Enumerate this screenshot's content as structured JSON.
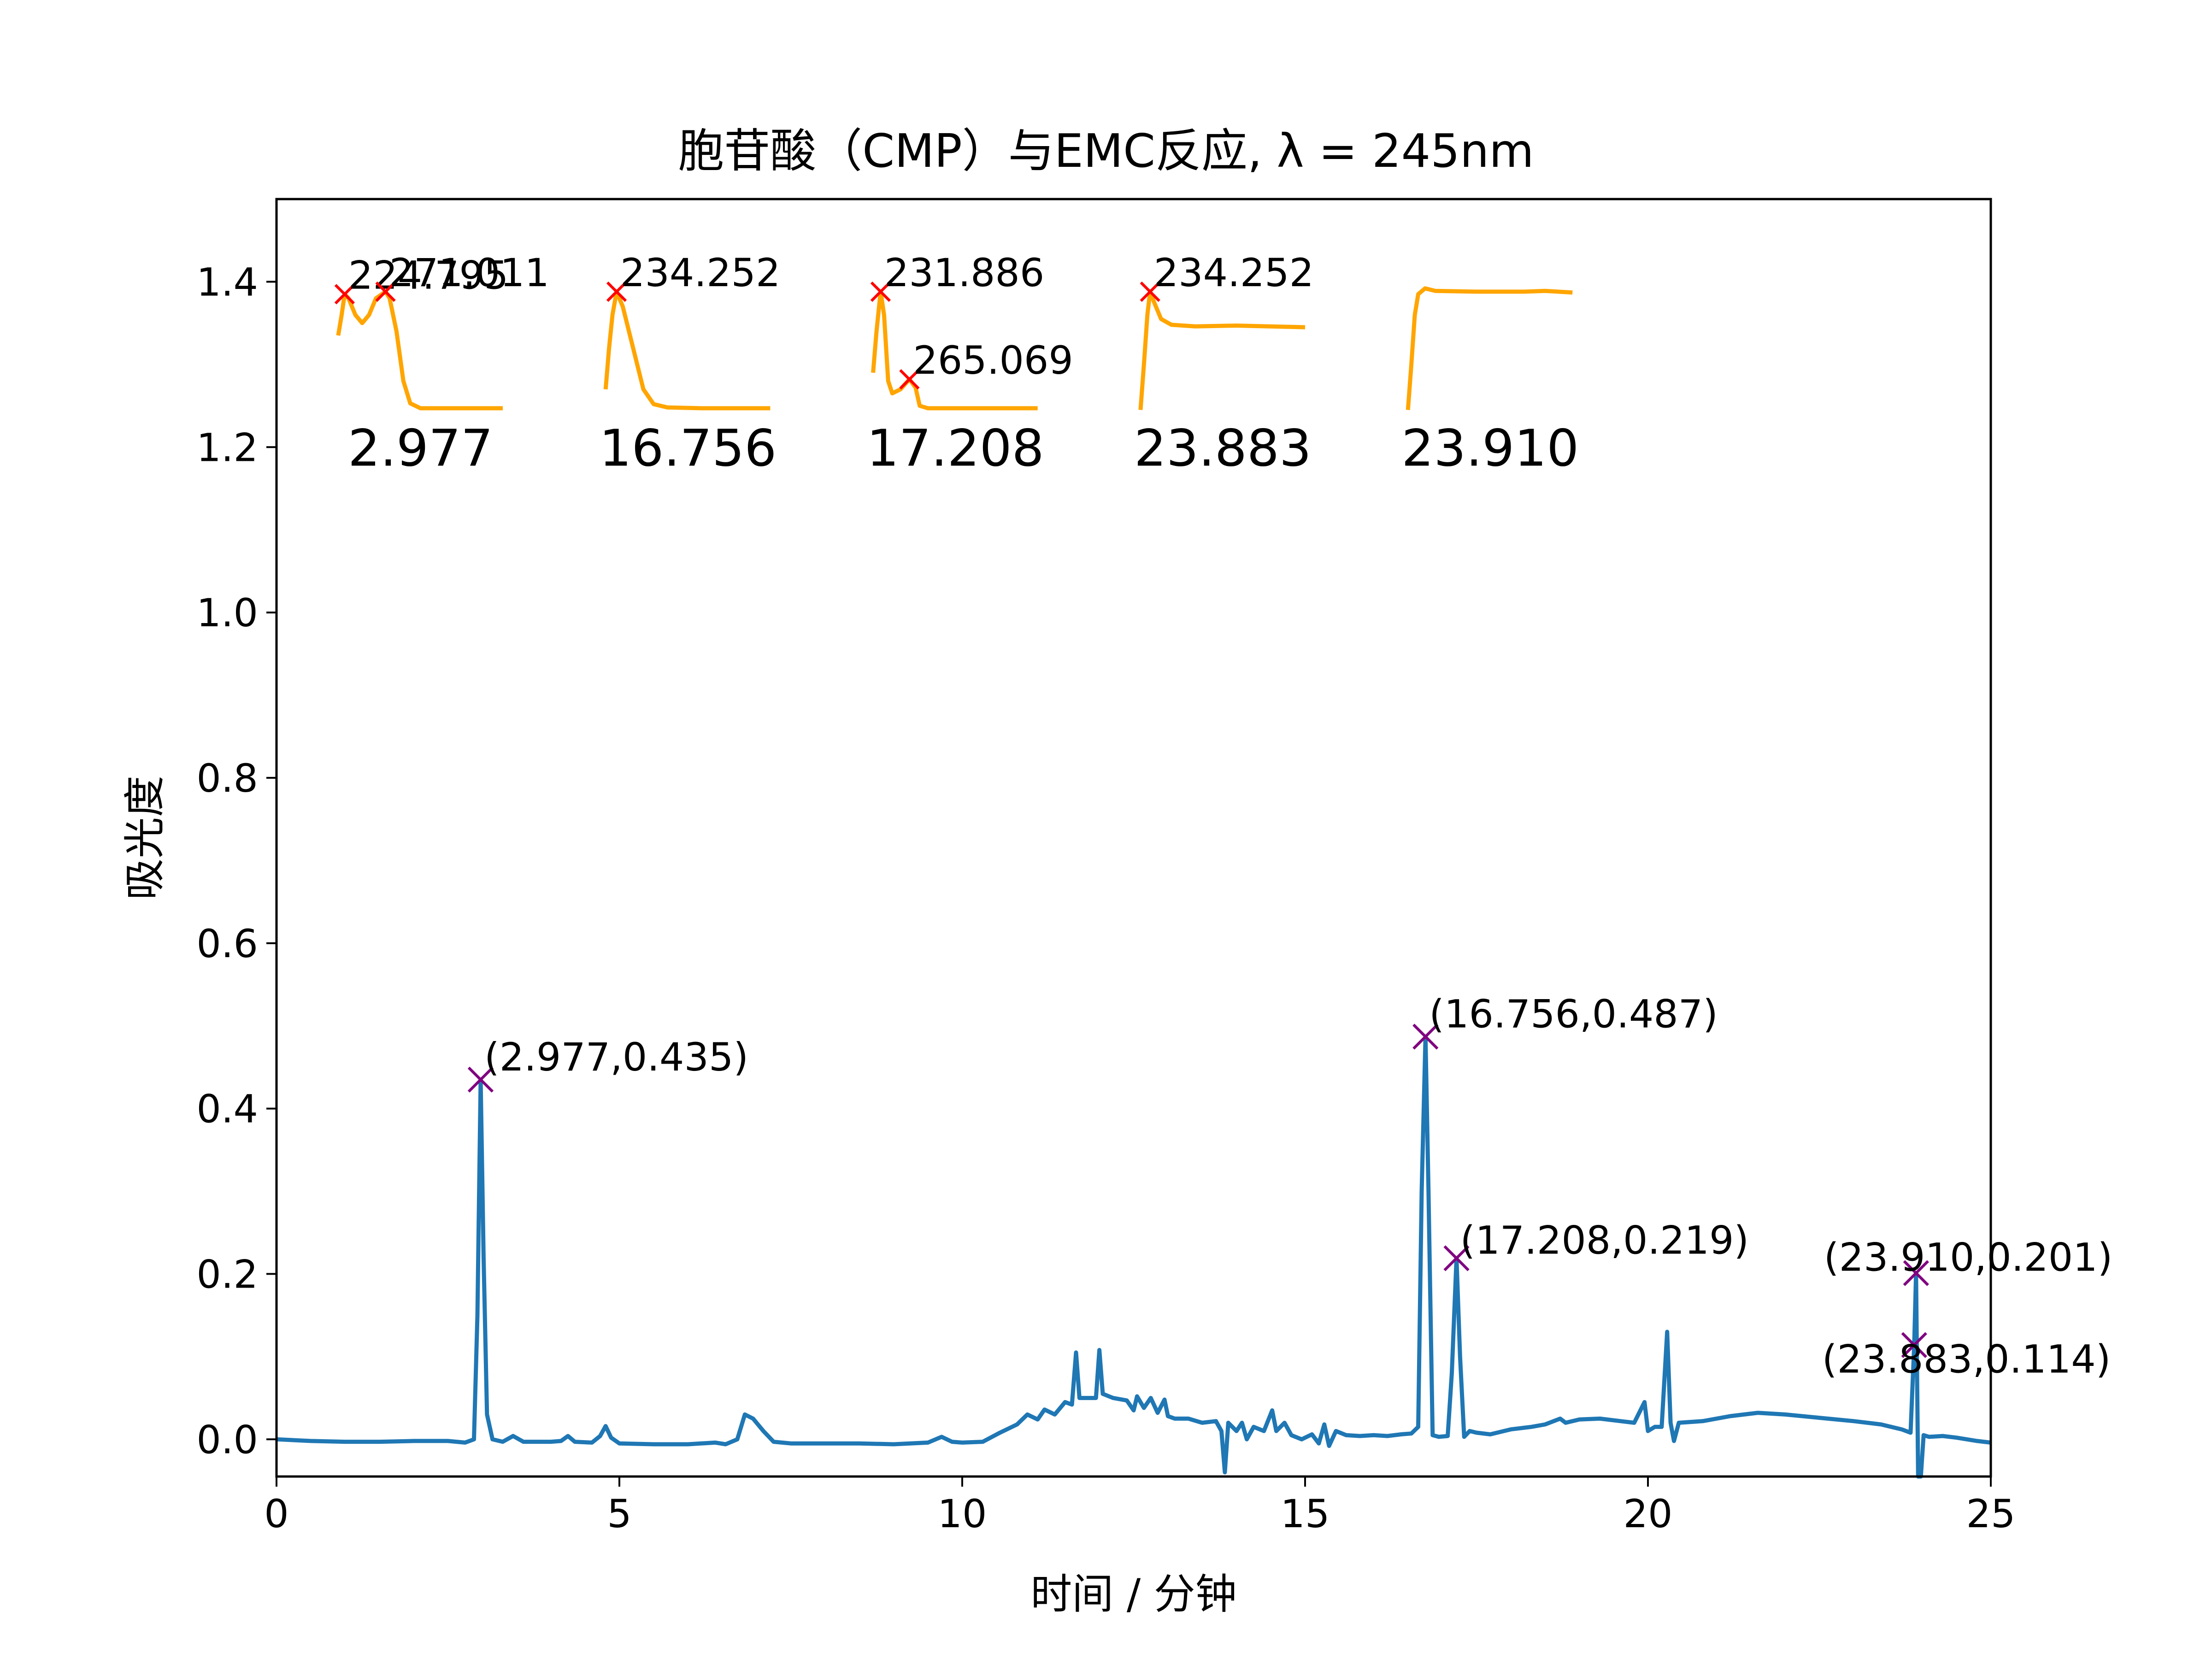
{
  "chart_data": {
    "type": "line",
    "title": "胞苷酸（CMP）与EMC反应, λ = 245nm",
    "xlabel": "时间 / 分钟",
    "ylabel": "吸光度",
    "xlim": [
      0,
      25
    ],
    "ylim": [
      -0.045,
      1.5
    ],
    "xticks": [
      0,
      5,
      10,
      15,
      20,
      25
    ],
    "xtick_labels": [
      "0",
      "5",
      "10",
      "15",
      "20",
      "25"
    ],
    "yticks": [
      0.0,
      0.2,
      0.4,
      0.6,
      0.8,
      1.0,
      1.2,
      1.4
    ],
    "ytick_labels": [
      "0.0",
      "0.2",
      "0.4",
      "0.6",
      "0.8",
      "1.0",
      "1.2",
      "1.4"
    ],
    "grid": false,
    "colors": {
      "trace": "#1f77b4",
      "peak_marker": "#800080",
      "spectrum": "#ffa500",
      "spectrum_marker": "#ff0000"
    },
    "series": [
      {
        "points": [
          [
            0,
            0.0
          ],
          [
            0.5,
            -0.002
          ],
          [
            1,
            -0.003
          ],
          [
            1.5,
            -0.003
          ],
          [
            2,
            -0.002
          ],
          [
            2.5,
            -0.002
          ],
          [
            2.75,
            -0.004
          ],
          [
            2.88,
            0.0
          ],
          [
            2.93,
            0.15
          ],
          [
            2.977,
            0.435
          ],
          [
            3.02,
            0.22
          ],
          [
            3.07,
            0.03
          ],
          [
            3.15,
            0.0
          ],
          [
            3.3,
            -0.003
          ],
          [
            3.45,
            0.004
          ],
          [
            3.6,
            -0.003
          ],
          [
            4.0,
            -0.003
          ],
          [
            4.15,
            -0.002
          ],
          [
            4.25,
            0.004
          ],
          [
            4.35,
            -0.003
          ],
          [
            4.6,
            -0.004
          ],
          [
            4.72,
            0.004
          ],
          [
            4.8,
            0.016
          ],
          [
            4.88,
            0.002
          ],
          [
            5.0,
            -0.005
          ],
          [
            5.5,
            -0.006
          ],
          [
            6.0,
            -0.006
          ],
          [
            6.4,
            -0.004
          ],
          [
            6.55,
            -0.006
          ],
          [
            6.72,
            0.0
          ],
          [
            6.83,
            0.03
          ],
          [
            6.95,
            0.025
          ],
          [
            7.1,
            0.01
          ],
          [
            7.25,
            -0.003
          ],
          [
            7.5,
            -0.005
          ],
          [
            8.0,
            -0.005
          ],
          [
            8.5,
            -0.005
          ],
          [
            9.0,
            -0.006
          ],
          [
            9.5,
            -0.004
          ],
          [
            9.7,
            0.003
          ],
          [
            9.85,
            -0.003
          ],
          [
            10.0,
            -0.004
          ],
          [
            10.3,
            -0.003
          ],
          [
            10.55,
            0.008
          ],
          [
            10.8,
            0.018
          ],
          [
            10.95,
            0.03
          ],
          [
            11.1,
            0.024
          ],
          [
            11.2,
            0.036
          ],
          [
            11.35,
            0.03
          ],
          [
            11.5,
            0.045
          ],
          [
            11.6,
            0.042
          ],
          [
            11.66,
            0.105
          ],
          [
            11.71,
            0.05
          ],
          [
            11.85,
            0.05
          ],
          [
            11.95,
            0.05
          ],
          [
            12.0,
            0.108
          ],
          [
            12.05,
            0.055
          ],
          [
            12.2,
            0.05
          ],
          [
            12.4,
            0.047
          ],
          [
            12.5,
            0.035
          ],
          [
            12.55,
            0.052
          ],
          [
            12.65,
            0.038
          ],
          [
            12.75,
            0.05
          ],
          [
            12.85,
            0.032
          ],
          [
            12.95,
            0.048
          ],
          [
            13.0,
            0.028
          ],
          [
            13.1,
            0.025
          ],
          [
            13.3,
            0.025
          ],
          [
            13.5,
            0.02
          ],
          [
            13.7,
            0.022
          ],
          [
            13.78,
            0.01
          ],
          [
            13.83,
            -0.04
          ],
          [
            13.88,
            0.02
          ],
          [
            14.0,
            0.01
          ],
          [
            14.08,
            0.02
          ],
          [
            14.15,
            0.0
          ],
          [
            14.25,
            0.015
          ],
          [
            14.4,
            0.01
          ],
          [
            14.52,
            0.035
          ],
          [
            14.58,
            0.01
          ],
          [
            14.7,
            0.02
          ],
          [
            14.8,
            0.005
          ],
          [
            14.95,
            0.0
          ],
          [
            15.1,
            0.006
          ],
          [
            15.2,
            -0.005
          ],
          [
            15.28,
            0.018
          ],
          [
            15.35,
            -0.008
          ],
          [
            15.45,
            0.01
          ],
          [
            15.6,
            0.005
          ],
          [
            15.8,
            0.004
          ],
          [
            16.0,
            0.005
          ],
          [
            16.2,
            0.004
          ],
          [
            16.4,
            0.006
          ],
          [
            16.55,
            0.007
          ],
          [
            16.65,
            0.015
          ],
          [
            16.7,
            0.3
          ],
          [
            16.756,
            0.487
          ],
          [
            16.8,
            0.3
          ],
          [
            16.86,
            0.005
          ],
          [
            16.95,
            0.003
          ],
          [
            17.08,
            0.004
          ],
          [
            17.14,
            0.08
          ],
          [
            17.208,
            0.219
          ],
          [
            17.26,
            0.1
          ],
          [
            17.32,
            0.003
          ],
          [
            17.4,
            0.01
          ],
          [
            17.5,
            0.008
          ],
          [
            17.7,
            0.006
          ],
          [
            18.0,
            0.012
          ],
          [
            18.3,
            0.015
          ],
          [
            18.5,
            0.018
          ],
          [
            18.72,
            0.025
          ],
          [
            18.8,
            0.02
          ],
          [
            19.0,
            0.024
          ],
          [
            19.3,
            0.025
          ],
          [
            19.6,
            0.022
          ],
          [
            19.8,
            0.02
          ],
          [
            19.95,
            0.045
          ],
          [
            20.0,
            0.01
          ],
          [
            20.1,
            0.015
          ],
          [
            20.2,
            0.015
          ],
          [
            20.28,
            0.13
          ],
          [
            20.33,
            0.02
          ],
          [
            20.38,
            -0.002
          ],
          [
            20.45,
            0.02
          ],
          [
            20.8,
            0.022
          ],
          [
            21.2,
            0.028
          ],
          [
            21.6,
            0.032
          ],
          [
            22.0,
            0.03
          ],
          [
            22.5,
            0.026
          ],
          [
            23.0,
            0.022
          ],
          [
            23.4,
            0.018
          ],
          [
            23.7,
            0.012
          ],
          [
            23.83,
            0.008
          ],
          [
            23.883,
            0.114
          ],
          [
            23.91,
            0.201
          ],
          [
            23.94,
            -0.045
          ],
          [
            23.98,
            -0.045
          ],
          [
            24.02,
            0.005
          ],
          [
            24.1,
            0.003
          ],
          [
            24.3,
            0.004
          ],
          [
            24.5,
            0.002
          ],
          [
            24.8,
            -0.002
          ],
          [
            25,
            -0.004
          ]
        ]
      }
    ],
    "peaks": [
      {
        "x": 2.977,
        "y": 0.435,
        "label": "(2.977,0.435)"
      },
      {
        "x": 16.756,
        "y": 0.487,
        "label": "(16.756,0.487)"
      },
      {
        "x": 17.208,
        "y": 0.219,
        "label": "(17.208,0.219)"
      },
      {
        "x": 23.883,
        "y": 0.114,
        "label": "(23.883,0.114)"
      },
      {
        "x": 23.91,
        "y": 0.201,
        "label": "(23.910,0.201)"
      }
    ],
    "spectra": [
      {
        "label": "2.977",
        "x_range": [
          0.9,
          3.3
        ],
        "points": [
          [
            0.9,
            1.335
          ],
          [
            0.95,
            1.36
          ],
          [
            0.994,
            1.385
          ],
          [
            1.05,
            1.38
          ],
          [
            1.15,
            1.36
          ],
          [
            1.25,
            1.35
          ],
          [
            1.35,
            1.36
          ],
          [
            1.45,
            1.38
          ],
          [
            1.59,
            1.388
          ],
          [
            1.65,
            1.38
          ],
          [
            1.75,
            1.34
          ],
          [
            1.85,
            1.28
          ],
          [
            1.95,
            1.253
          ],
          [
            2.1,
            1.247
          ],
          [
            2.5,
            1.247
          ],
          [
            3.3,
            1.247
          ]
        ],
        "maxima": [
          {
            "x": 0.994,
            "y": 1.385,
            "label": "224.795"
          },
          {
            "x": 1.59,
            "y": 1.388,
            "label": "271.011"
          }
        ]
      },
      {
        "label": "16.756",
        "x_range": [
          4.8,
          7.2
        ],
        "points": [
          [
            4.8,
            1.27
          ],
          [
            4.85,
            1.32
          ],
          [
            4.9,
            1.36
          ],
          [
            4.96,
            1.388
          ],
          [
            5.05,
            1.37
          ],
          [
            5.2,
            1.32
          ],
          [
            5.35,
            1.27
          ],
          [
            5.5,
            1.252
          ],
          [
            5.7,
            1.248
          ],
          [
            6.2,
            1.247
          ],
          [
            7.2,
            1.247
          ]
        ],
        "maxima": [
          {
            "x": 4.96,
            "y": 1.388,
            "label": "234.252"
          }
        ]
      },
      {
        "label": "17.208",
        "x_range": [
          8.7,
          11.1
        ],
        "points": [
          [
            8.7,
            1.29
          ],
          [
            8.75,
            1.34
          ],
          [
            8.81,
            1.388
          ],
          [
            8.86,
            1.36
          ],
          [
            8.92,
            1.28
          ],
          [
            8.98,
            1.265
          ],
          [
            9.1,
            1.27
          ],
          [
            9.23,
            1.282
          ],
          [
            9.32,
            1.272
          ],
          [
            9.38,
            1.25
          ],
          [
            9.5,
            1.247
          ],
          [
            10.0,
            1.247
          ],
          [
            11.1,
            1.247
          ]
        ],
        "maxima": [
          {
            "x": 8.81,
            "y": 1.388,
            "label": "231.886"
          },
          {
            "x": 9.23,
            "y": 1.282,
            "label": "265.069"
          }
        ]
      },
      {
        "label": "23.883",
        "x_range": [
          12.6,
          15.0
        ],
        "points": [
          [
            12.6,
            1.245
          ],
          [
            12.65,
            1.3
          ],
          [
            12.7,
            1.36
          ],
          [
            12.74,
            1.388
          ],
          [
            12.8,
            1.375
          ],
          [
            12.9,
            1.355
          ],
          [
            13.05,
            1.348
          ],
          [
            13.4,
            1.346
          ],
          [
            14.0,
            1.347
          ],
          [
            15.0,
            1.345
          ]
        ],
        "maxima": [
          {
            "x": 12.74,
            "y": 1.388,
            "label": "234.252"
          }
        ]
      },
      {
        "label": "23.910",
        "x_range": [
          16.5,
          18.9
        ],
        "points": [
          [
            16.5,
            1.245
          ],
          [
            16.55,
            1.3
          ],
          [
            16.6,
            1.36
          ],
          [
            16.65,
            1.385
          ],
          [
            16.75,
            1.392
          ],
          [
            16.9,
            1.389
          ],
          [
            17.5,
            1.388
          ],
          [
            18.2,
            1.388
          ],
          [
            18.5,
            1.389
          ],
          [
            18.9,
            1.387
          ]
        ],
        "maxima": []
      }
    ]
  }
}
